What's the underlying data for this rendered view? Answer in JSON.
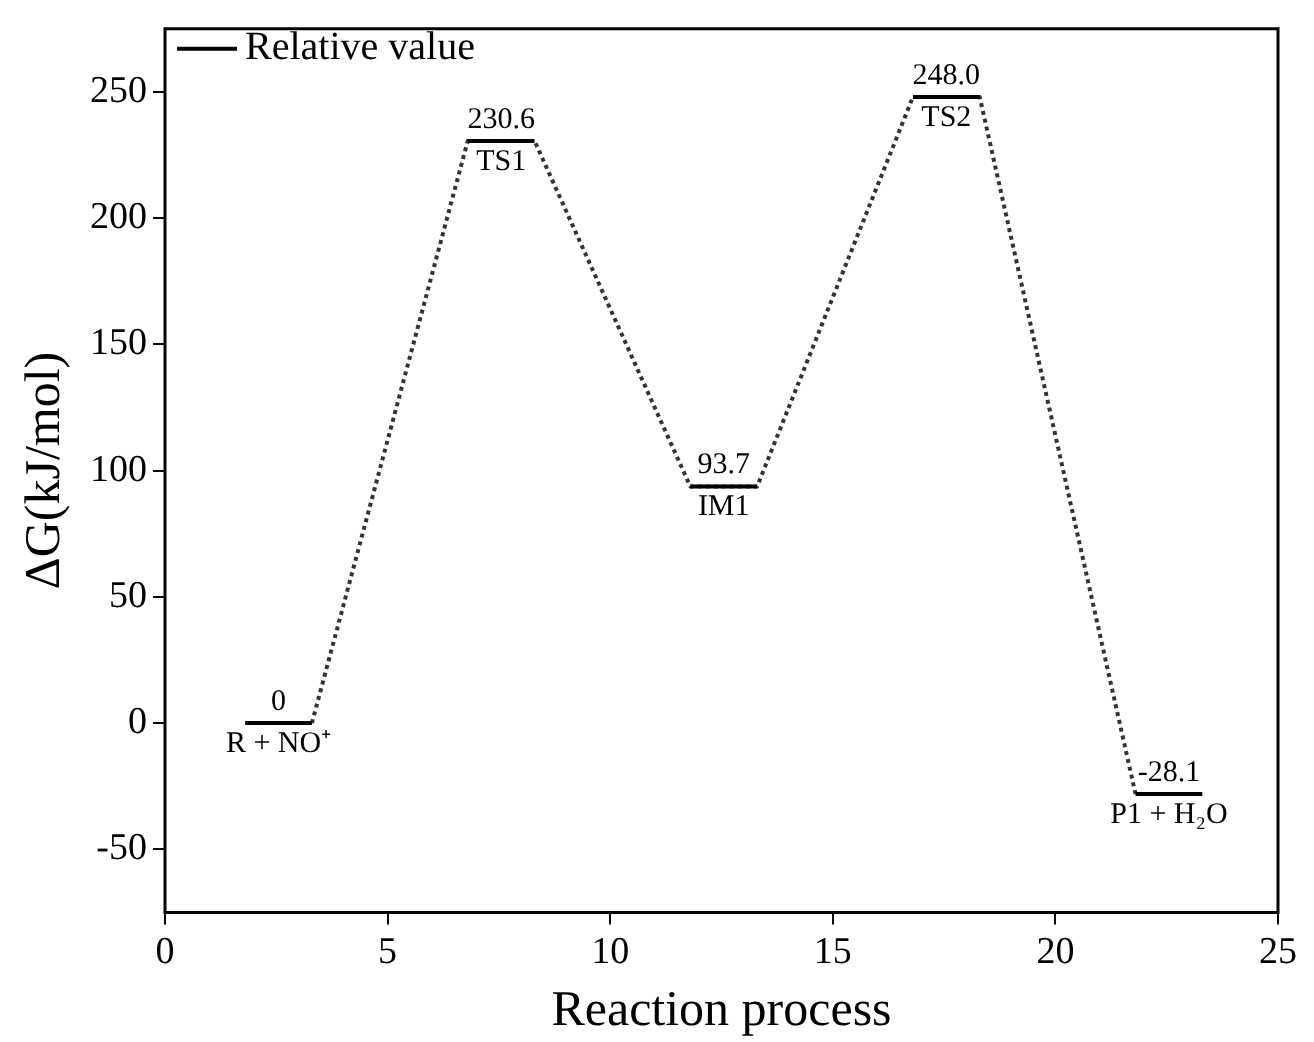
{
  "chart_data": {
    "type": "line",
    "xlabel": "Reaction process",
    "ylabel": "ΔG(kJ/mol)",
    "xlim": [
      0,
      25
    ],
    "ylim": [
      -75,
      275
    ],
    "xticks": [
      0,
      5,
      10,
      15,
      20,
      25
    ],
    "yticks": [
      -50,
      0,
      50,
      100,
      150,
      200,
      250
    ],
    "grid": false,
    "legend": "top left",
    "marker": "none",
    "series": [
      {
        "name": "Relative value",
        "color": "#000000",
        "line_style": "solid",
        "x": [
          1.8,
          3.3,
          5,
          6.8,
          8.3,
          10,
          11.8,
          13.3,
          15,
          16.8,
          18.3,
          20,
          21.8,
          23.3
        ],
        "values": [
          0,
          0,
          null,
          230.6,
          230.6,
          null,
          93.7,
          93.7,
          null,
          248.0,
          248.0,
          null,
          -28.1,
          -28.1
        ],
        "value_labels": [
          "0",
          null,
          null,
          "230.6",
          null,
          null,
          "93.7",
          null,
          null,
          "248.0",
          null,
          null,
          "-28.1",
          null
        ]
      },
      {
        "color": "#333333",
        "line_style": "dotted",
        "x": [
          3.3,
          6.8,
          8.3,
          11.8,
          13.3,
          16.8,
          18.3,
          21.8
        ],
        "values": [
          0,
          230.6,
          230.6,
          93.7,
          93.7,
          248.0,
          248.0,
          -28.1
        ]
      }
    ],
    "annotations": [
      {
        "text": "R + NO⁺",
        "x": 2.55,
        "y": 0
      },
      {
        "text": "TS1",
        "x": 7.55,
        "y": 230.6
      },
      {
        "text": "IM1",
        "x": 12.55,
        "y": 93.7
      },
      {
        "text": "TS2",
        "x": 17.55,
        "y": 248.0
      },
      {
        "text": "P1 + H₂O",
        "x": 22.55,
        "y": -28.1
      }
    ]
  }
}
